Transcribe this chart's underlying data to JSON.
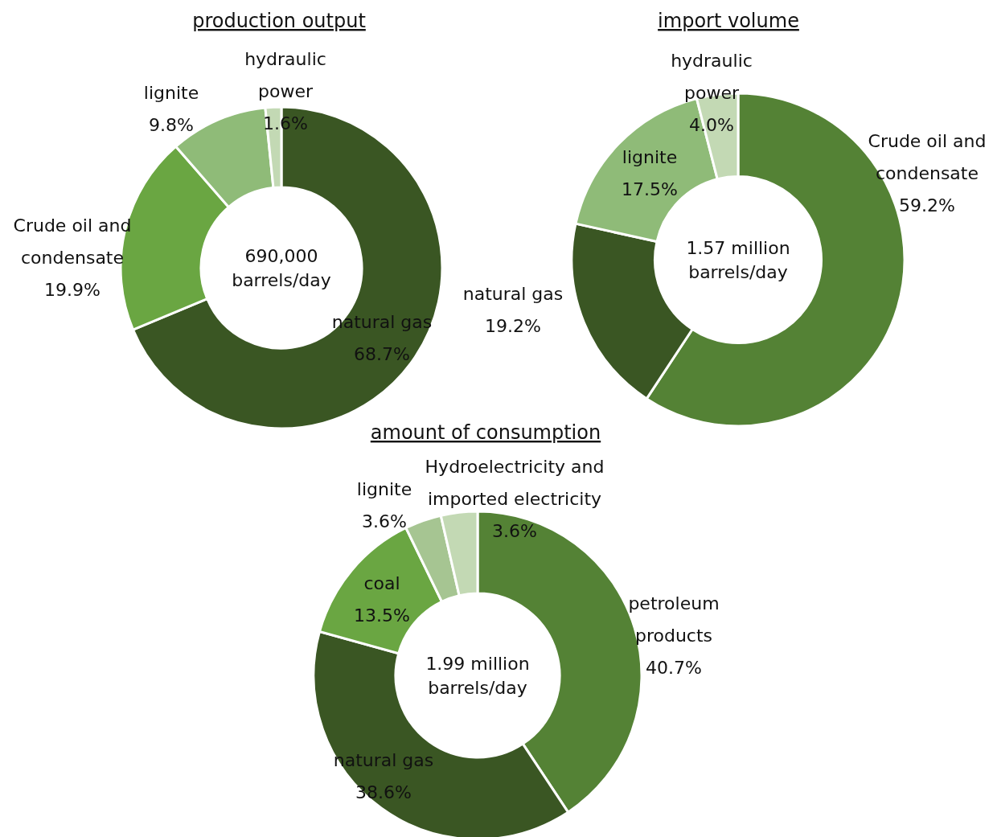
{
  "chart_data": [
    {
      "type": "donut",
      "title": "production output",
      "categories": [
        "natural gas",
        "Crude oil and condensate",
        "lignite",
        "hydraulic power"
      ],
      "values": [
        68.7,
        19.9,
        9.8,
        1.6
      ],
      "colors": [
        "#3a5623",
        "#6aa642",
        "#8fbb78",
        "#c3d9b4"
      ],
      "value_labels": [
        "68.7%",
        "19.9%",
        "9.8%",
        "1.6%"
      ],
      "annotations": [
        "690,000 barrels/day"
      ]
    },
    {
      "type": "donut",
      "title": "import volume",
      "categories": [
        "Crude oil and condensate",
        "natural gas",
        "lignite",
        "hydraulic power"
      ],
      "values": [
        59.2,
        19.2,
        17.5,
        4.0
      ],
      "colors": [
        "#548235",
        "#3a5623",
        "#8fbb78",
        "#c3d9b4"
      ],
      "value_labels": [
        "59.2%",
        "19.2%",
        "17.5%",
        "4.0%"
      ],
      "annotations": [
        "1.57 million barrels/day"
      ]
    },
    {
      "type": "donut",
      "title": "amount of consumption",
      "categories": [
        "petroleum products",
        "natural gas",
        "coal",
        "lignite",
        "Hydroelectricity and imported electricity"
      ],
      "values": [
        40.7,
        38.6,
        13.5,
        3.6,
        3.6
      ],
      "colors": [
        "#548235",
        "#3a5623",
        "#6aa642",
        "#a6c592",
        "#c3d9b4"
      ],
      "value_labels": [
        "40.7%",
        "38.6%",
        "13.5%",
        "3.6%",
        "3.6%"
      ],
      "annotations": [
        "1.99 million barrels/day"
      ]
    }
  ]
}
